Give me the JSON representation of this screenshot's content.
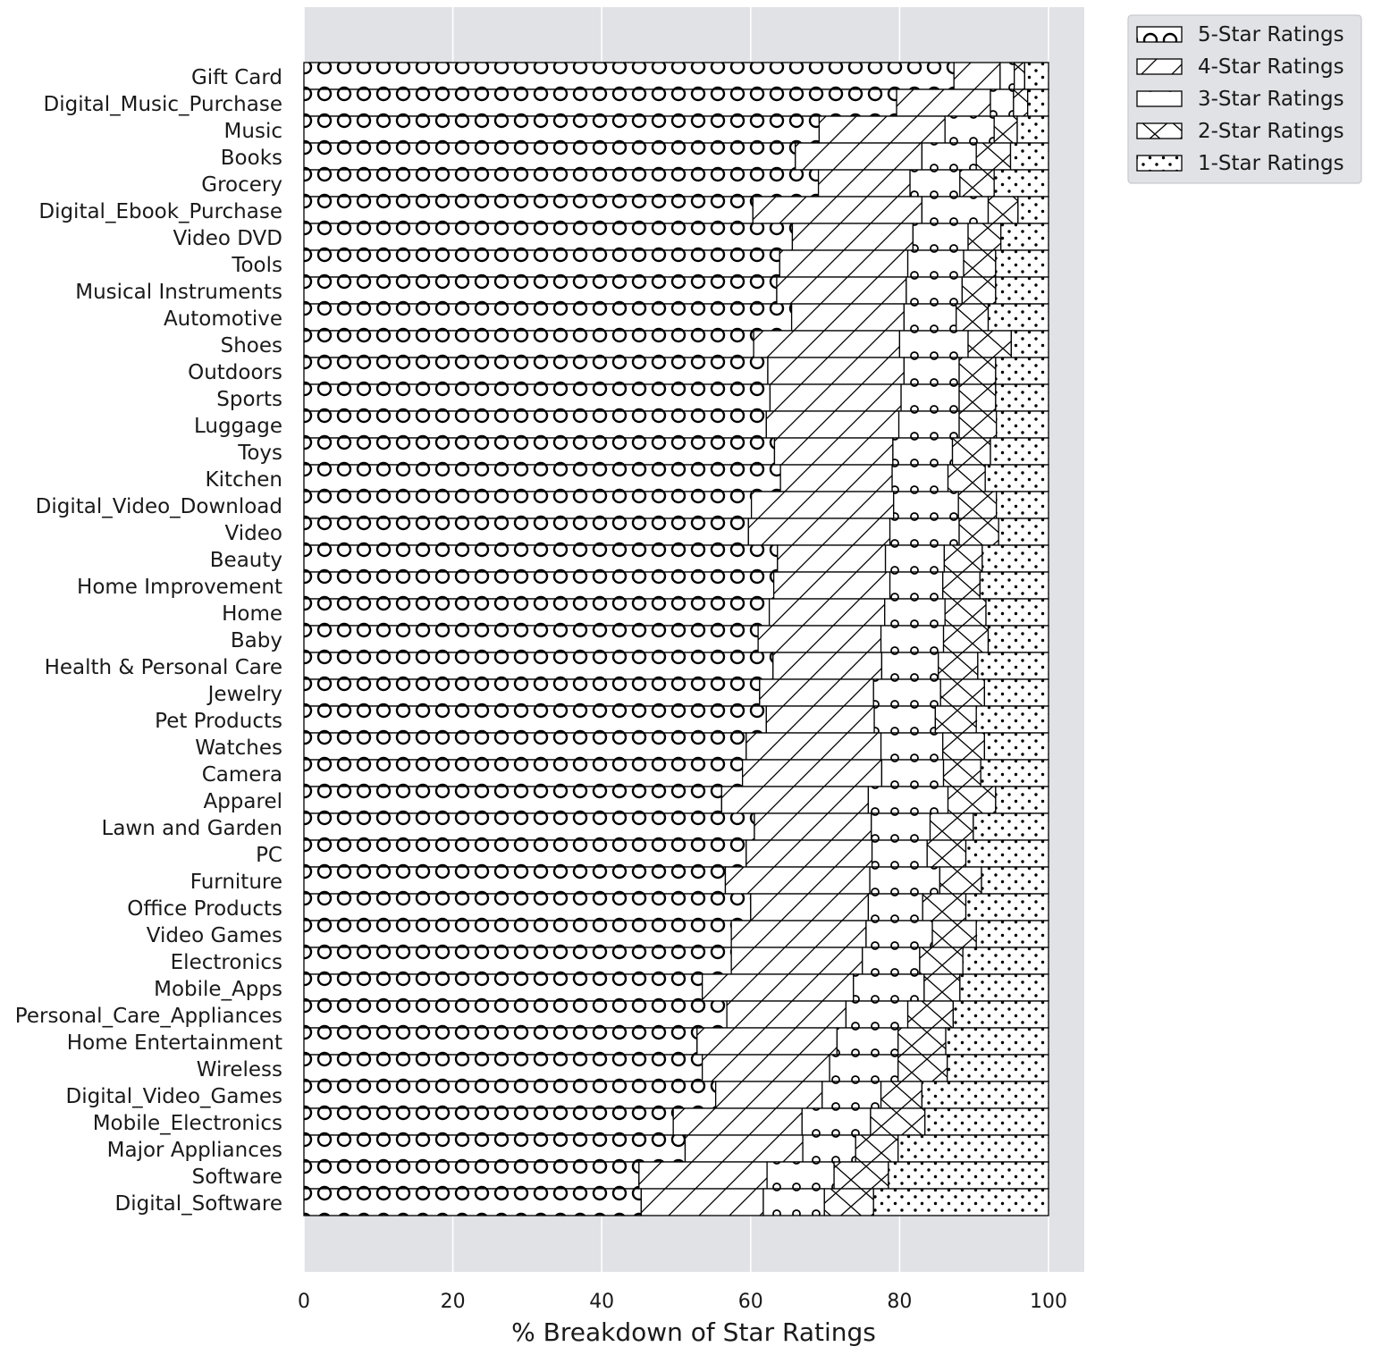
{
  "chart_data": {
    "type": "bar",
    "orientation": "horizontal",
    "stacked": true,
    "title": "",
    "xlabel": "% Breakdown of Star Ratings",
    "ylabel": "",
    "xlim": [
      0,
      100
    ],
    "xticks": [
      0,
      20,
      40,
      60,
      80,
      100
    ],
    "grid": true,
    "legend_position": "top-right, outside",
    "categories": [
      "Gift Card",
      "Digital_Music_Purchase",
      "Music",
      "Books",
      "Grocery",
      "Digital_Ebook_Purchase",
      "Video DVD",
      "Tools",
      "Musical Instruments",
      "Automotive",
      "Shoes",
      "Outdoors",
      "Sports",
      "Luggage",
      "Toys",
      "Kitchen",
      "Digital_Video_Download",
      "Video",
      "Beauty",
      "Home Improvement",
      "Home",
      "Baby",
      "Health & Personal Care",
      "Jewelry",
      "Pet Products",
      "Watches",
      "Camera",
      "Apparel",
      "Lawn and Garden",
      "PC",
      "Furniture",
      "Office Products",
      "Video Games",
      "Electronics",
      "Mobile_Apps",
      "Personal_Care_Appliances",
      "Home Entertainment",
      "Wireless",
      "Digital_Video_Games",
      "Mobile_Electronics",
      "Major Appliances",
      "Software",
      "Digital_Software"
    ],
    "series": [
      {
        "name": "5-Star Ratings",
        "values": [
          87.3,
          79.6,
          69.2,
          66.0,
          69.1,
          60.3,
          65.6,
          63.9,
          63.5,
          65.5,
          60.4,
          62.3,
          62.6,
          62.1,
          63.2,
          64.0,
          60.1,
          59.7,
          63.6,
          63.1,
          62.5,
          61.0,
          63.0,
          61.2,
          62.1,
          59.4,
          58.9,
          56.1,
          60.5,
          59.4,
          56.6,
          60.0,
          57.4,
          57.4,
          53.5,
          56.8,
          52.8,
          53.5,
          55.3,
          49.6,
          51.2,
          45.0,
          45.3
        ]
      },
      {
        "name": "4-Star Ratings",
        "values": [
          6.2,
          12.6,
          16.9,
          17.0,
          12.3,
          22.7,
          16.2,
          17.2,
          17.4,
          15.1,
          19.6,
          18.3,
          17.6,
          17.8,
          15.9,
          15.0,
          19.1,
          19.0,
          14.5,
          15.6,
          15.5,
          16.5,
          14.6,
          15.3,
          14.5,
          18.1,
          18.7,
          19.7,
          15.7,
          16.9,
          19.4,
          15.8,
          18.1,
          17.6,
          20.3,
          16.0,
          18.8,
          17.1,
          14.3,
          17.3,
          15.8,
          17.2,
          16.4
        ]
      },
      {
        "name": "3-Star Ratings",
        "values": [
          1.9,
          3.1,
          6.6,
          7.3,
          6.7,
          8.9,
          7.4,
          7.5,
          7.5,
          7.0,
          9.2,
          7.4,
          7.8,
          8.1,
          8.0,
          7.5,
          8.7,
          9.3,
          7.9,
          7.1,
          8.1,
          8.4,
          7.6,
          9.0,
          8.2,
          8.3,
          8.3,
          10.7,
          7.9,
          7.4,
          9.4,
          7.3,
          8.9,
          7.7,
          9.5,
          8.3,
          8.2,
          9.2,
          7.9,
          9.2,
          7.1,
          9.0,
          8.2
        ]
      },
      {
        "name": "2-Star Ratings",
        "values": [
          1.4,
          1.9,
          3.1,
          4.6,
          4.6,
          4.0,
          4.4,
          4.3,
          4.5,
          4.3,
          5.8,
          4.9,
          4.9,
          5.0,
          5.1,
          5.0,
          5.1,
          5.3,
          5.1,
          5.0,
          5.5,
          6.0,
          5.3,
          5.9,
          5.5,
          5.6,
          5.0,
          6.4,
          5.8,
          5.2,
          5.6,
          5.8,
          5.9,
          5.8,
          4.8,
          6.1,
          6.4,
          6.6,
          5.5,
          7.3,
          5.7,
          7.3,
          6.6
        ]
      },
      {
        "name": "1-Star Ratings",
        "values": [
          3.2,
          2.8,
          4.2,
          5.1,
          7.3,
          4.1,
          6.4,
          7.1,
          7.1,
          8.1,
          5.0,
          7.1,
          7.1,
          7.0,
          7.8,
          8.5,
          7.0,
          6.7,
          8.9,
          9.2,
          8.4,
          8.1,
          9.5,
          8.6,
          9.7,
          8.6,
          9.1,
          7.1,
          10.1,
          11.1,
          9.0,
          11.1,
          9.7,
          11.5,
          11.9,
          12.8,
          13.8,
          13.6,
          17.0,
          16.6,
          20.2,
          21.5,
          23.5
        ]
      }
    ]
  }
}
